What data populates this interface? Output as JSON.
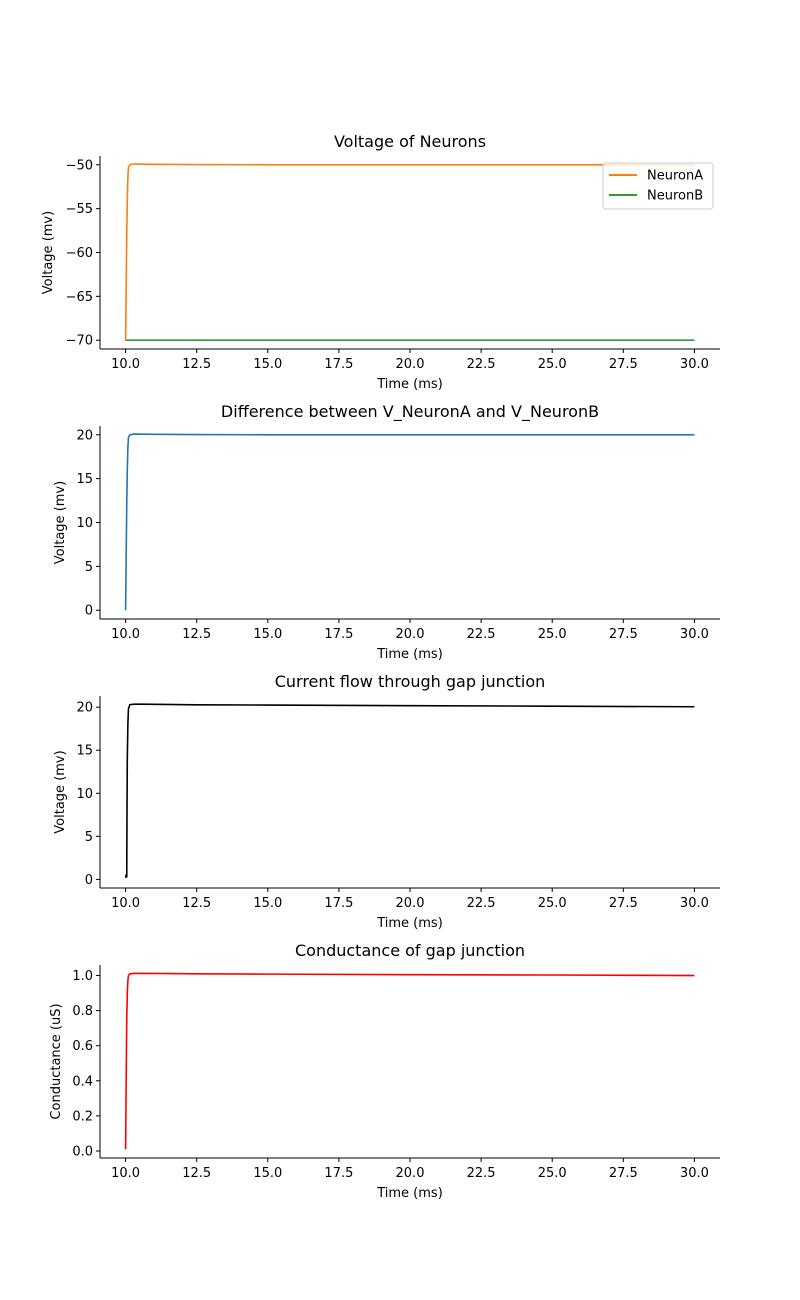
{
  "chart_data": [
    {
      "type": "line",
      "title": "Voltage of Neurons",
      "xlabel": "Time (ms)",
      "ylabel": "Voltage (mv)",
      "xlim": [
        9.1,
        30.9
      ],
      "ylim": [
        -71.0,
        -49.0
      ],
      "xticks": [
        10.0,
        12.5,
        15.0,
        17.5,
        20.0,
        22.5,
        25.0,
        27.5,
        30.0
      ],
      "xtick_labels": [
        "10.0",
        "12.5",
        "15.0",
        "17.5",
        "20.0",
        "22.5",
        "25.0",
        "27.5",
        "30.0"
      ],
      "yticks": [
        -50,
        -55,
        -60,
        -65,
        -70
      ],
      "ytick_labels": [
        "−50",
        "−55",
        "−60",
        "−65",
        "−70"
      ],
      "grid": false,
      "legend": "top-right",
      "series": [
        {
          "name": "NeuronA",
          "color": "#ff7f0e",
          "x": [
            10.0,
            10.02,
            10.04,
            10.06,
            10.08,
            10.1,
            10.15,
            10.3,
            10.6,
            11.0,
            12.5,
            15.0,
            20.0,
            25.0,
            30.0
          ],
          "y": [
            -70.0,
            -64.0,
            -58.0,
            -54.0,
            -51.5,
            -50.3,
            -50.0,
            -49.9,
            -49.93,
            -49.95,
            -49.98,
            -50.0,
            -50.0,
            -50.0,
            -50.0
          ]
        },
        {
          "name": "NeuronB",
          "color": "#2ca02c",
          "x": [
            10.0,
            30.0
          ],
          "y": [
            -70.0,
            -70.0
          ]
        }
      ]
    },
    {
      "type": "line",
      "title": "Difference between V_NeuronA and V_NeuronB",
      "xlabel": "Time (ms)",
      "ylabel": "Voltage (mv)",
      "xlim": [
        9.1,
        30.9
      ],
      "ylim": [
        -1.0,
        21.0
      ],
      "xticks": [
        10.0,
        12.5,
        15.0,
        17.5,
        20.0,
        22.5,
        25.0,
        27.5,
        30.0
      ],
      "xtick_labels": [
        "10.0",
        "12.5",
        "15.0",
        "17.5",
        "20.0",
        "22.5",
        "25.0",
        "27.5",
        "30.0"
      ],
      "yticks": [
        0,
        5,
        10,
        15,
        20
      ],
      "ytick_labels": [
        "0",
        "5",
        "10",
        "15",
        "20"
      ],
      "grid": false,
      "series": [
        {
          "color": "#1f77b4",
          "x": [
            10.0,
            10.02,
            10.04,
            10.06,
            10.08,
            10.1,
            10.15,
            10.3,
            10.6,
            11.0,
            12.5,
            15.0,
            20.0,
            25.0,
            30.0
          ],
          "y": [
            0.0,
            6.0,
            12.0,
            16.0,
            18.5,
            19.7,
            20.0,
            20.08,
            20.07,
            20.05,
            20.02,
            20.0,
            20.0,
            20.0,
            20.0
          ]
        }
      ]
    },
    {
      "type": "line",
      "title": "Current flow through gap junction",
      "xlabel": "Time (ms)",
      "ylabel": "Voltage (mv)",
      "xlim": [
        9.1,
        30.9
      ],
      "ylim": [
        -1.0,
        21.3
      ],
      "xticks": [
        10.0,
        12.5,
        15.0,
        17.5,
        20.0,
        22.5,
        25.0,
        27.5,
        30.0
      ],
      "xtick_labels": [
        "10.0",
        "12.5",
        "15.0",
        "17.5",
        "20.0",
        "22.5",
        "25.0",
        "27.5",
        "30.0"
      ],
      "yticks": [
        0,
        5,
        10,
        15,
        20
      ],
      "ytick_labels": [
        "0",
        "5",
        "10",
        "15",
        "20"
      ],
      "grid": false,
      "series": [
        {
          "color": "#000000",
          "x": [
            10.0,
            10.02,
            10.04,
            10.05,
            10.06,
            10.08,
            10.1,
            10.15,
            10.3,
            10.6,
            11.0,
            12.5,
            15.0,
            20.0,
            25.0,
            30.0
          ],
          "y": [
            0.2,
            0.5,
            0.3,
            8.0,
            14.0,
            18.0,
            19.8,
            20.3,
            20.35,
            20.35,
            20.33,
            20.28,
            20.25,
            20.18,
            20.12,
            20.05
          ]
        }
      ]
    },
    {
      "type": "line",
      "title": "Conductance of gap junction",
      "xlabel": "Time (ms)",
      "ylabel": "Conductance (uS)",
      "xlim": [
        9.1,
        30.9
      ],
      "ylim": [
        -0.04,
        1.06
      ],
      "xticks": [
        10.0,
        12.5,
        15.0,
        17.5,
        20.0,
        22.5,
        25.0,
        27.5,
        30.0
      ],
      "xtick_labels": [
        "10.0",
        "12.5",
        "15.0",
        "17.5",
        "20.0",
        "22.5",
        "25.0",
        "27.5",
        "30.0"
      ],
      "yticks": [
        0.0,
        0.2,
        0.4,
        0.6,
        0.8,
        1.0
      ],
      "ytick_labels": [
        "0.0",
        "0.2",
        "0.4",
        "0.6",
        "0.8",
        "1.0"
      ],
      "grid": false,
      "series": [
        {
          "color": "#ff0000",
          "x": [
            10.0,
            10.02,
            10.04,
            10.06,
            10.08,
            10.1,
            10.15,
            10.3,
            10.6,
            11.0,
            12.5,
            15.0,
            20.0,
            25.0,
            30.0
          ],
          "y": [
            0.01,
            0.4,
            0.75,
            0.9,
            0.97,
            1.0,
            1.01,
            1.012,
            1.012,
            1.012,
            1.01,
            1.008,
            1.005,
            1.003,
            1.0
          ]
        }
      ]
    }
  ]
}
